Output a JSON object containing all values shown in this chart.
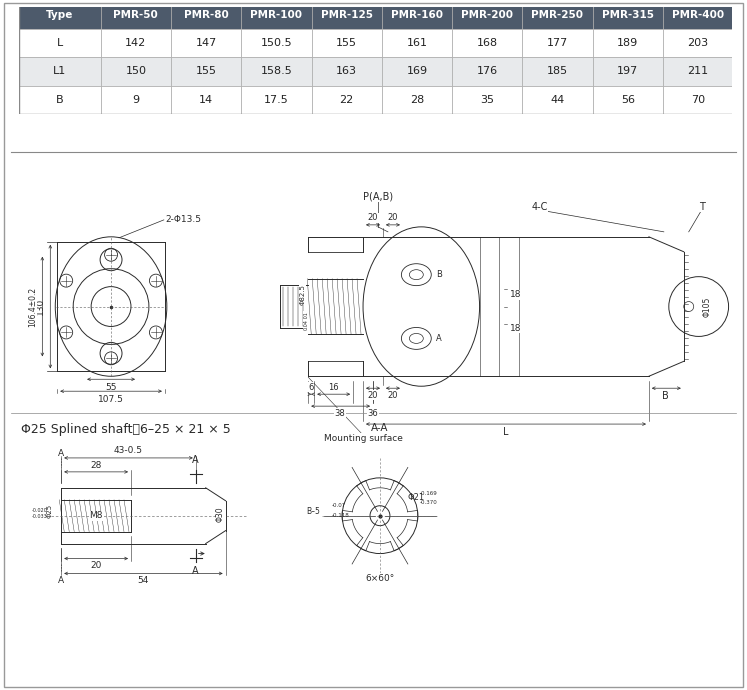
{
  "table": {
    "header": [
      "Type",
      "PMR-50",
      "PMR-80",
      "PMR-100",
      "PMR-125",
      "PMR-160",
      "PMR-200",
      "PMR-250",
      "PMR-315",
      "PMR-400"
    ],
    "rows": [
      [
        "L",
        "142",
        "147",
        "150.5",
        "155",
        "161",
        "168",
        "177",
        "189",
        "203"
      ],
      [
        "L1",
        "150",
        "155",
        "158.5",
        "163",
        "169",
        "176",
        "185",
        "197",
        "211"
      ],
      [
        "B",
        "9",
        "14",
        "17.5",
        "22",
        "28",
        "35",
        "44",
        "56",
        "70"
      ]
    ],
    "header_bg": "#4d5a6b",
    "header_fg": "#ffffff",
    "row_bg": [
      "#ffffff",
      "#e8eaec",
      "#ffffff"
    ],
    "border_color": "#aaaaaa"
  },
  "bg_color": "#ffffff",
  "line_color": "#2a2a2a",
  "dim_color": "#2a2a2a"
}
